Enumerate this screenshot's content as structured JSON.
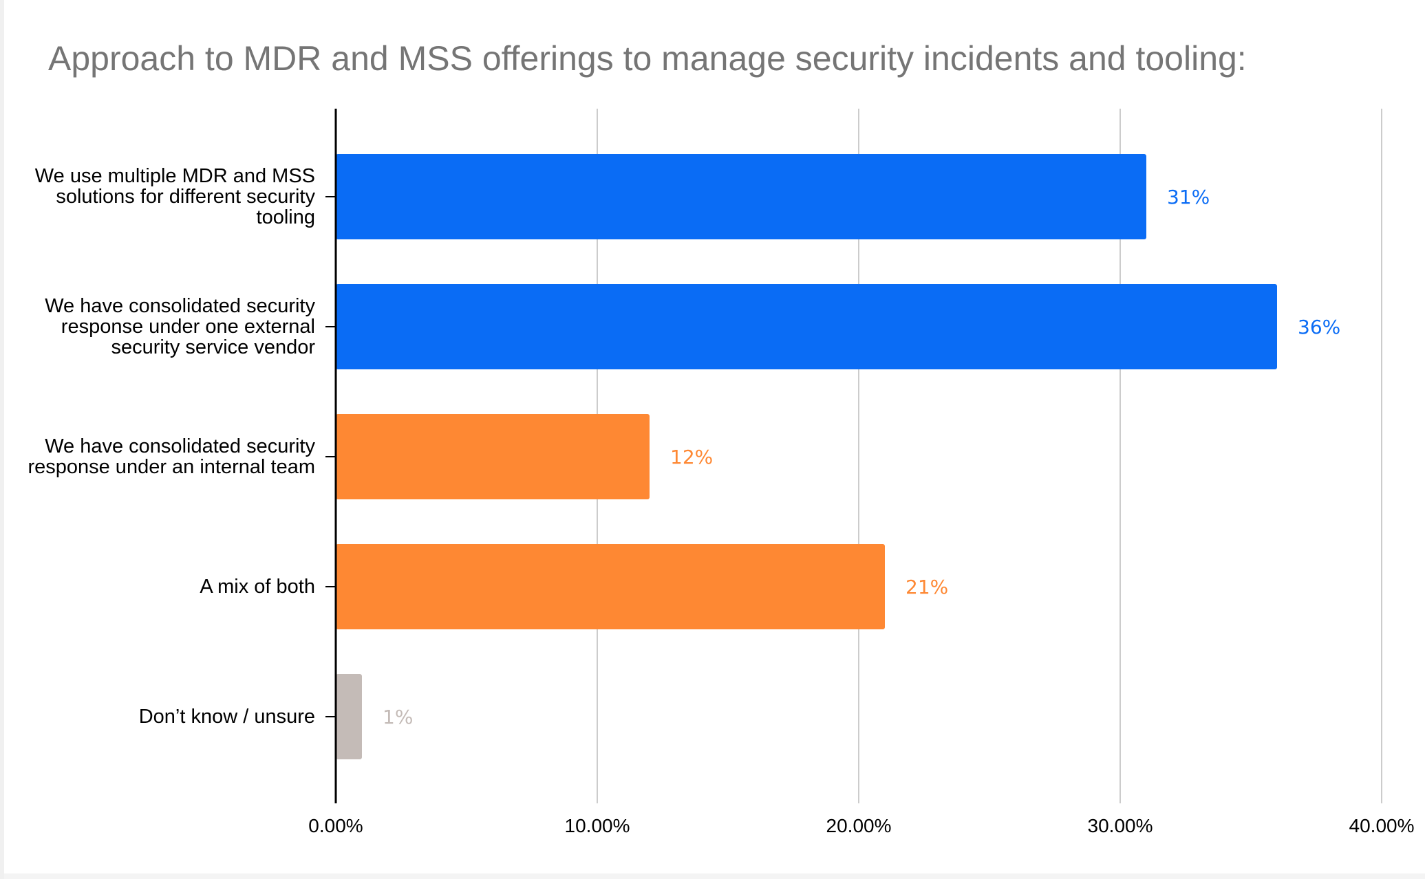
{
  "title": "Approach to MDR and MSS offerings to manage security incidents and tooling:",
  "chart_data": {
    "type": "bar",
    "orientation": "horizontal",
    "title": "Approach to MDR and MSS offerings to manage security incidents and tooling:",
    "xlabel": "",
    "ylabel": "",
    "xlim": [
      0,
      40
    ],
    "x_ticks": [
      "0.00%",
      "10.00%",
      "20.00%",
      "30.00%",
      "40.00%"
    ],
    "grid": "vertical",
    "legend": "none",
    "categories": [
      "We use multiple MDR and MSS solutions for different security tooling",
      "We have consolidated security response under one external security service vendor",
      "We have consolidated security response under an internal team",
      "A mix of both",
      "Don’t know / unsure"
    ],
    "values": [
      31,
      36,
      12,
      21,
      1
    ],
    "data_labels": [
      "31%",
      "36%",
      "12%",
      "21%",
      "1%"
    ],
    "colors": [
      "#0a6cf5",
      "#0a6cf5",
      "#fe8833",
      "#fe8833",
      "#c4bbb7"
    ],
    "label_colors": [
      "#0a6cf5",
      "#0a6cf5",
      "#fe8833",
      "#fe8833",
      "#c4bbb7"
    ]
  }
}
